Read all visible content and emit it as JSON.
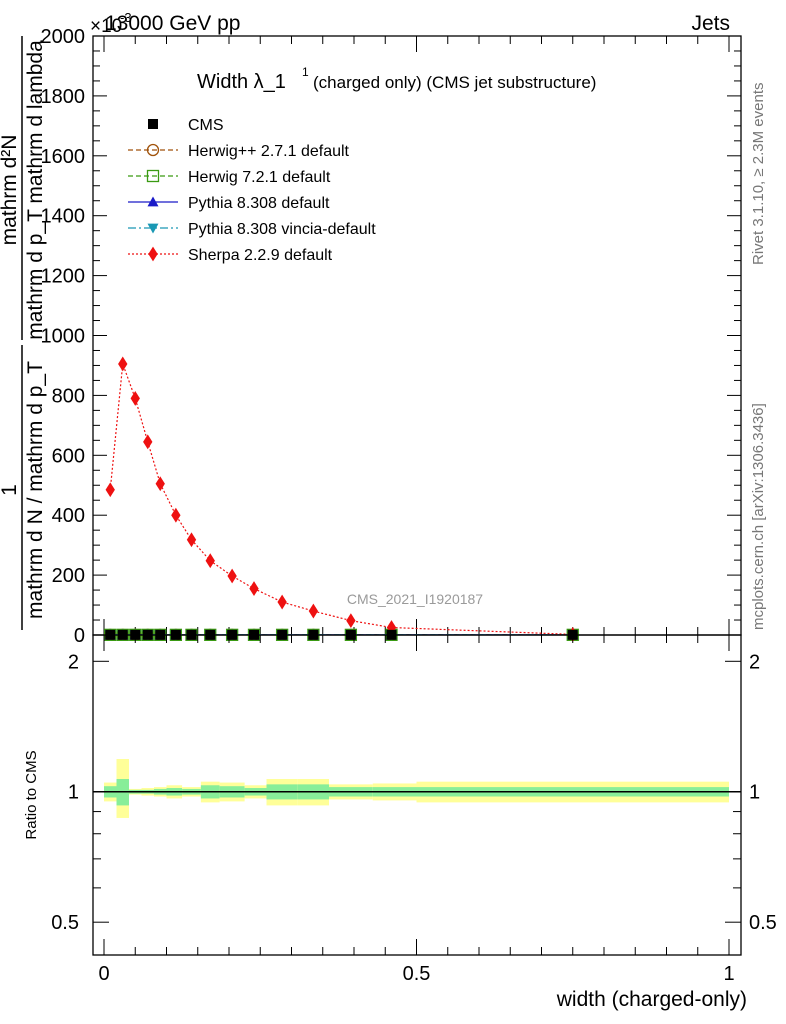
{
  "header": {
    "exponent_label": "×10",
    "exponent_sup": "-3",
    "energy_label": "13000 GeV pp",
    "process_label": "Jets",
    "rivet_label": "Rivet 3.1.10, ≥ 2.3M events",
    "mcplots_label": "mcplots.cern.ch [arXiv:1306.3436]",
    "analysis_label": "CMS_2021_I1920187"
  },
  "chart_data": {
    "type": "line",
    "title_main": "Width λ_1",
    "title_sup": "1",
    "title_rest": "(charged only) (CMS jet substructure)",
    "ylabel_num": "mathrm d²N",
    "ylabel_den": "mathrm d p_T mathrm d lambda",
    "ylabel_prefix_num": "1",
    "ylabel_prefix_den": "mathrm d N / mathrm d p_T",
    "xlabel": "width (charged-only)",
    "ratio_ylabel": "Ratio to CMS",
    "xlim": [
      0,
      1
    ],
    "ylim": [
      0,
      2000
    ],
    "ratio_ylim": [
      0.42,
      2.3
    ],
    "x_ticks": [
      "0",
      "0.5",
      "1"
    ],
    "y_ticks": [
      "0",
      "200",
      "400",
      "600",
      "800",
      "1000",
      "1200",
      "1400",
      "1600",
      "1800",
      "2000"
    ],
    "ratio_ticks": [
      "0.5",
      "1",
      "2"
    ],
    "x": [
      0.01,
      0.03,
      0.05,
      0.07,
      0.09,
      0.115,
      0.14,
      0.17,
      0.205,
      0.24,
      0.285,
      0.335,
      0.395,
      0.46,
      0.75
    ],
    "series": [
      {
        "name": "CMS",
        "color": "#000000",
        "marker": "square",
        "values": [
          0.5,
          0.5,
          0.5,
          0.5,
          0.5,
          0.5,
          0.5,
          0.5,
          0.5,
          0.5,
          0.5,
          0.5,
          0.5,
          0.5,
          0.5
        ]
      },
      {
        "name": "Herwig++ 2.7.1 default",
        "color": "#a0520a",
        "marker": "circle-open",
        "values": [
          0.5,
          0.5,
          0.5,
          0.5,
          0.5,
          0.5,
          0.5,
          0.5,
          0.5,
          0.5,
          0.5,
          0.5,
          0.5,
          0.5,
          0.5
        ]
      },
      {
        "name": "Herwig 7.2.1 default",
        "color": "#3a9a12",
        "marker": "square-open",
        "values": [
          0.5,
          0.5,
          0.5,
          0.5,
          0.5,
          0.5,
          0.5,
          0.5,
          0.5,
          0.5,
          0.5,
          0.5,
          0.5,
          0.5,
          0.5
        ]
      },
      {
        "name": "Pythia 8.308 default",
        "color": "#1a1ac8",
        "marker": "triangle",
        "values": [
          0.5,
          0.5,
          0.5,
          0.5,
          0.5,
          0.5,
          0.5,
          0.5,
          0.5,
          0.5,
          0.5,
          0.5,
          0.5,
          0.5,
          0.5
        ]
      },
      {
        "name": "Pythia 8.308 vincia-default",
        "color": "#1a98b4",
        "marker": "triangle-down",
        "values": [
          0.5,
          0.5,
          0.5,
          0.5,
          0.5,
          0.5,
          0.5,
          0.5,
          0.5,
          0.5,
          0.5,
          0.5,
          0.5,
          0.5,
          0.5
        ]
      },
      {
        "name": "Sherpa 2.2.9 default",
        "color": "#ee1111",
        "marker": "diamond",
        "values": [
          485,
          905,
          790,
          645,
          505,
          400,
          318,
          248,
          197,
          155,
          110,
          80,
          48,
          25,
          2
        ]
      }
    ],
    "ratio_bands": [
      {
        "x0": 0.0,
        "x1": 0.02,
        "inner": [
          0.97,
          1.03
        ],
        "outer": [
          0.95,
          1.05
        ]
      },
      {
        "x0": 0.02,
        "x1": 0.04,
        "inner": [
          0.93,
          1.07
        ],
        "outer": [
          0.87,
          1.19
        ]
      },
      {
        "x0": 0.04,
        "x1": 0.06,
        "inner": [
          0.99,
          1.01
        ],
        "outer": [
          0.985,
          1.015
        ]
      },
      {
        "x0": 0.06,
        "x1": 0.08,
        "inner": [
          0.99,
          1.01
        ],
        "outer": [
          0.98,
          1.02
        ]
      },
      {
        "x0": 0.08,
        "x1": 0.1,
        "inner": [
          0.985,
          1.015
        ],
        "outer": [
          0.975,
          1.025
        ]
      },
      {
        "x0": 0.1,
        "x1": 0.125,
        "inner": [
          0.98,
          1.02
        ],
        "outer": [
          0.965,
          1.035
        ]
      },
      {
        "x0": 0.125,
        "x1": 0.155,
        "inner": [
          0.985,
          1.015
        ],
        "outer": [
          0.975,
          1.025
        ]
      },
      {
        "x0": 0.155,
        "x1": 0.185,
        "inner": [
          0.965,
          1.035
        ],
        "outer": [
          0.945,
          1.055
        ]
      },
      {
        "x0": 0.185,
        "x1": 0.225,
        "inner": [
          0.97,
          1.03
        ],
        "outer": [
          0.95,
          1.05
        ]
      },
      {
        "x0": 0.225,
        "x1": 0.26,
        "inner": [
          0.98,
          1.02
        ],
        "outer": [
          0.965,
          1.035
        ]
      },
      {
        "x0": 0.26,
        "x1": 0.31,
        "inner": [
          0.96,
          1.04
        ],
        "outer": [
          0.93,
          1.07
        ]
      },
      {
        "x0": 0.31,
        "x1": 0.36,
        "inner": [
          0.96,
          1.04
        ],
        "outer": [
          0.93,
          1.07
        ]
      },
      {
        "x0": 0.36,
        "x1": 0.43,
        "inner": [
          0.975,
          1.025
        ],
        "outer": [
          0.96,
          1.04
        ]
      },
      {
        "x0": 0.43,
        "x1": 0.5,
        "inner": [
          0.975,
          1.025
        ],
        "outer": [
          0.955,
          1.045
        ]
      },
      {
        "x0": 0.5,
        "x1": 1.0,
        "inner": [
          0.975,
          1.025
        ],
        "outer": [
          0.945,
          1.055
        ]
      }
    ]
  }
}
